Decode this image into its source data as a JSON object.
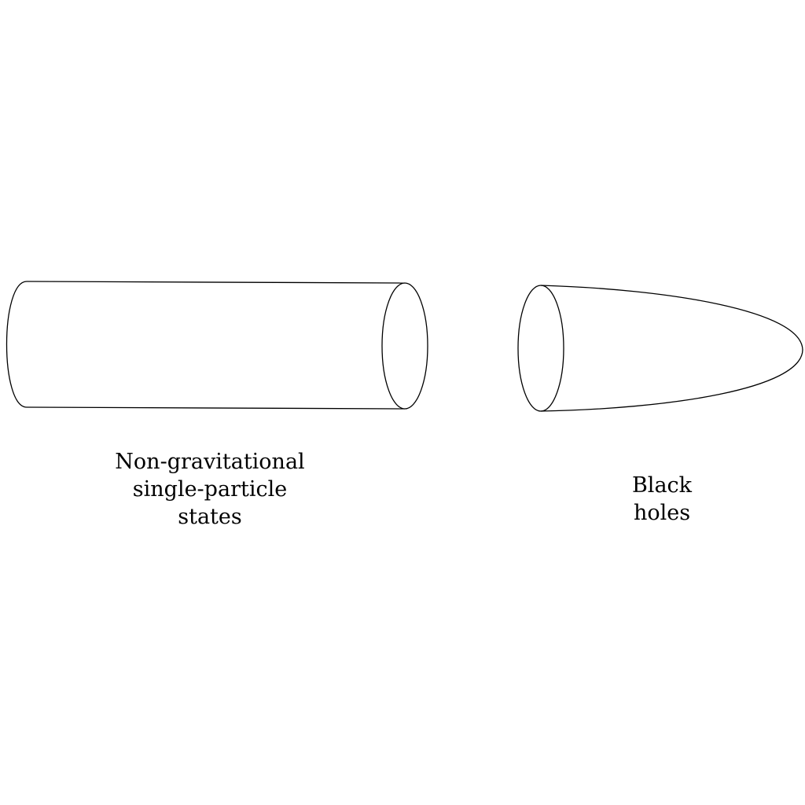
{
  "labels": {
    "left": [
      "Non-gravitational",
      "single-particle",
      "states"
    ],
    "right": [
      "Black",
      "holes"
    ]
  },
  "colors": {
    "stroke": "#000000",
    "background": "#ffffff"
  }
}
